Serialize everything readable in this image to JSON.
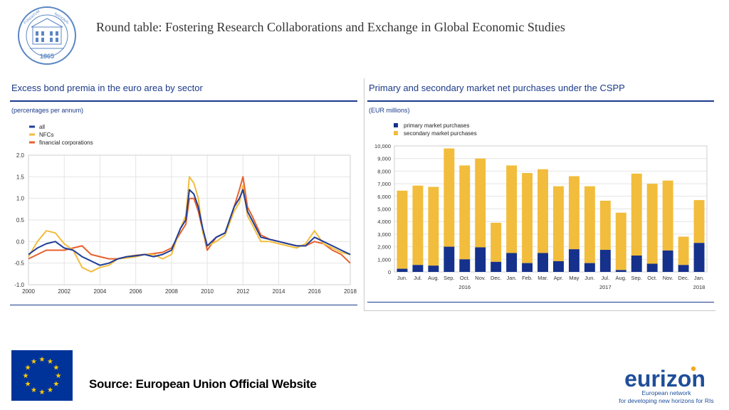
{
  "slide": {
    "title": "Round table: Fostering Research Collaborations and Exchange in Global Economic Studies",
    "source": "Source: European Union Official Website"
  },
  "logos": {
    "seal_text_left": "FUNDATUM",
    "seal_text_right": "NATIONAL",
    "seal_year": "1865",
    "eurizon_name": "eurizon",
    "eurizon_tagline_1": "European network",
    "eurizon_tagline_2": "for developing new horizons for RIs"
  },
  "colors": {
    "euro_blue": "#1c3a8a",
    "series_all": "#1f3d99",
    "series_nfcs": "#f2bd3c",
    "series_fin": "#e8612c",
    "primary": "#15318b",
    "secondary": "#f2bd3c",
    "eu_blue": "#003399",
    "eu_star": "#ffcc00"
  },
  "chart_data": [
    {
      "type": "line",
      "title": "Excess bond premia in the euro area by sector",
      "unit": "(percentages per annum)",
      "xlabel": "",
      "ylabel": "",
      "xlim": [
        2000,
        2018
      ],
      "ylim": [
        -1.0,
        2.0
      ],
      "yticks": [
        2.0,
        1.5,
        1.0,
        0.5,
        0.0,
        -0.5,
        -1.0
      ],
      "ytick_labels": [
        "2.0",
        "1.5",
        "1.0",
        "0.5",
        "0.0",
        "-0.5",
        "-1.0"
      ],
      "xticks": [
        2000,
        2002,
        2004,
        2006,
        2008,
        2010,
        2012,
        2014,
        2016,
        2018
      ],
      "xtick_labels": [
        "2000",
        "2002",
        "2004",
        "2006",
        "2008",
        "2010",
        "2012",
        "2014",
        "2016",
        "2018"
      ],
      "x": [
        2000.0,
        2000.5,
        2001.0,
        2001.5,
        2002.0,
        2002.5,
        2003.0,
        2003.5,
        2004.0,
        2004.5,
        2005.0,
        2005.5,
        2006.0,
        2006.5,
        2007.0,
        2007.5,
        2008.0,
        2008.5,
        2008.8,
        2009.0,
        2009.25,
        2009.5,
        2009.75,
        2010.0,
        2010.5,
        2011.0,
        2011.5,
        2011.8,
        2012.0,
        2012.25,
        2012.5,
        2013.0,
        2013.5,
        2014.0,
        2014.5,
        2015.0,
        2015.5,
        2016.0,
        2016.5,
        2017.0,
        2017.5,
        2018.0
      ],
      "series": [
        {
          "name": "all",
          "color": "#1f3d99",
          "values": [
            -0.3,
            -0.15,
            -0.05,
            0.0,
            -0.15,
            -0.2,
            -0.35,
            -0.45,
            -0.55,
            -0.5,
            -0.4,
            -0.35,
            -0.33,
            -0.3,
            -0.35,
            -0.3,
            -0.2,
            0.3,
            0.5,
            1.2,
            1.1,
            0.8,
            0.3,
            -0.1,
            0.1,
            0.2,
            0.8,
            1.0,
            1.2,
            0.7,
            0.5,
            0.1,
            0.05,
            0.0,
            -0.05,
            -0.1,
            -0.1,
            0.1,
            0.0,
            -0.1,
            -0.2,
            -0.3
          ]
        },
        {
          "name": "NFCs",
          "color": "#f2bd3c",
          "values": [
            -0.35,
            0.0,
            0.25,
            0.2,
            -0.05,
            -0.2,
            -0.6,
            -0.7,
            -0.6,
            -0.55,
            -0.4,
            -0.38,
            -0.35,
            -0.3,
            -0.3,
            -0.4,
            -0.3,
            0.3,
            0.6,
            1.5,
            1.35,
            1.0,
            0.2,
            -0.1,
            0.0,
            0.15,
            0.7,
            0.9,
            1.3,
            0.6,
            0.4,
            0.0,
            0.0,
            -0.05,
            -0.1,
            -0.15,
            -0.05,
            0.25,
            -0.05,
            -0.15,
            -0.25,
            -0.3
          ]
        },
        {
          "name": "financial corporations",
          "color": "#e8612c",
          "values": [
            -0.4,
            -0.3,
            -0.2,
            -0.2,
            -0.2,
            -0.15,
            -0.1,
            -0.3,
            -0.35,
            -0.4,
            -0.4,
            -0.35,
            -0.32,
            -0.3,
            -0.28,
            -0.25,
            -0.15,
            0.2,
            0.4,
            1.0,
            1.0,
            0.7,
            0.25,
            -0.2,
            0.1,
            0.2,
            0.8,
            1.2,
            1.5,
            0.8,
            0.6,
            0.15,
            0.05,
            0.0,
            -0.05,
            -0.1,
            -0.1,
            0.0,
            -0.05,
            -0.2,
            -0.3,
            -0.5
          ]
        }
      ],
      "legend": [
        "all",
        "NFCs",
        "financial corporations"
      ],
      "grid": true
    },
    {
      "type": "bar",
      "stacked": true,
      "title": "Primary and secondary market net purchases under the CSPP",
      "unit": "(EUR millions)",
      "ylim": [
        0,
        10000
      ],
      "yticks": [
        0,
        1000,
        2000,
        3000,
        4000,
        5000,
        6000,
        7000,
        8000,
        9000,
        10000
      ],
      "ytick_labels": [
        "0",
        "1,000",
        "2,000",
        "3,000",
        "4,000",
        "5,000",
        "6,000",
        "7,000",
        "8,000",
        "9,000",
        "10,000"
      ],
      "categories": [
        "Jun.",
        "Jul.",
        "Aug.",
        "Sep.",
        "Oct.",
        "Nov.",
        "Dec.",
        "Jan.",
        "Feb.",
        "Mar.",
        "Apr.",
        "May",
        "Jun.",
        "Jul.",
        "Aug.",
        "Sep.",
        "Oct.",
        "Nov.",
        "Dec.",
        "Jan."
      ],
      "year_labels": [
        {
          "label": "2016",
          "index": 4
        },
        {
          "label": "2017",
          "index": 13
        },
        {
          "label": "2018",
          "index": 19
        }
      ],
      "series": [
        {
          "name": "primary market purchases",
          "color": "#15318b",
          "values": [
            250,
            550,
            500,
            2000,
            1000,
            1950,
            800,
            1500,
            700,
            1500,
            850,
            1800,
            700,
            1750,
            150,
            1300,
            650,
            1700,
            550,
            2300
          ]
        },
        {
          "name": "secondary market purchases",
          "color": "#f2bd3c",
          "values": [
            6200,
            6300,
            6250,
            7800,
            7450,
            7050,
            3100,
            6950,
            7150,
            6650,
            5950,
            5800,
            6100,
            3900,
            4550,
            6500,
            6350,
            5550,
            2250,
            3400
          ]
        }
      ],
      "legend": [
        "primary market purchases",
        "secondary market purchases"
      ],
      "grid": true
    }
  ]
}
